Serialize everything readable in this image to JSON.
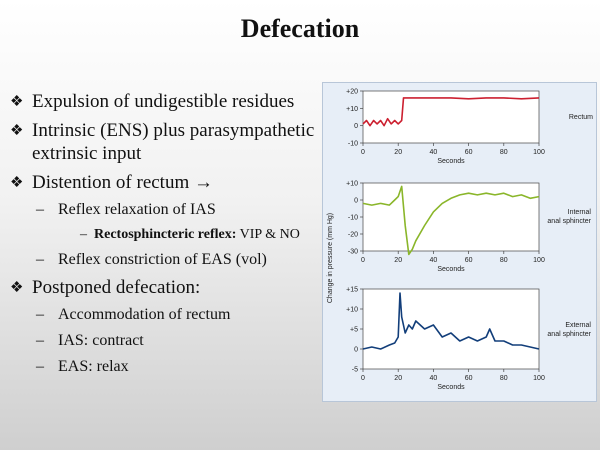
{
  "slide": {
    "title": "Defecation",
    "bullets": {
      "b1": "Expulsion of undigestible residues",
      "b2": "Intrinsic (ENS) plus parasympathetic  extrinsic input",
      "b3": "Distention of rectum →",
      "b3_1": "Reflex relaxation  of IAS",
      "b3_1_1_bold": "Rectosphincteric reflex:",
      "b3_1_1_rest": " VIP & NO",
      "b3_2": "Reflex constriction  of EAS (vol)",
      "b4": "Postponed defecation:",
      "b4_1": "Accommodation  of rectum",
      "b4_2": "IAS: contract",
      "b4_3": "EAS: relax"
    },
    "markers": {
      "level1": "❖",
      "dash": "–"
    }
  },
  "figure": {
    "ylabel": "Change in pressure (mm Hg)",
    "xlabel": "Seconds",
    "x_ticks": [
      "0",
      "20",
      "40",
      "60",
      "80",
      "100"
    ],
    "panels": [
      {
        "label": "Rectum",
        "y_ticks": [
          "+20",
          "+10",
          "0",
          "-10"
        ]
      },
      {
        "label_line1": "Internal",
        "label_line2": "anal sphincter",
        "y_ticks": [
          "+10",
          "0",
          "-10",
          "-20",
          "-30"
        ]
      },
      {
        "label_line1": "External",
        "label_line2": "anal sphincter",
        "y_ticks": [
          "+15",
          "+10",
          "+5",
          "0",
          "-5"
        ]
      }
    ]
  },
  "chart_data": [
    {
      "type": "line",
      "title": "Rectum",
      "xlabel": "Seconds",
      "ylabel": "Change in pressure (mm Hg)",
      "xlim": [
        0,
        100
      ],
      "ylim": [
        -10,
        20
      ],
      "color": "#cc2030",
      "x": [
        0,
        2,
        4,
        6,
        8,
        10,
        12,
        14,
        16,
        18,
        20,
        22,
        23,
        25,
        30,
        40,
        50,
        60,
        70,
        80,
        90,
        100
      ],
      "y": [
        1,
        3,
        0,
        3,
        1,
        3,
        0,
        4,
        1,
        3,
        1,
        3,
        16,
        16,
        16,
        16,
        16,
        15.5,
        16,
        16,
        15.5,
        16
      ]
    },
    {
      "type": "line",
      "title": "Internal anal sphincter",
      "xlabel": "Seconds",
      "ylabel": "Change in pressure (mm Hg)",
      "xlim": [
        0,
        100
      ],
      "ylim": [
        -30,
        10
      ],
      "color": "#8ab62a",
      "x": [
        0,
        5,
        10,
        15,
        18,
        20,
        22,
        24,
        26,
        28,
        30,
        35,
        40,
        45,
        50,
        55,
        60,
        65,
        70,
        75,
        80,
        85,
        90,
        95,
        100
      ],
      "y": [
        -2,
        -3,
        -2,
        -3,
        0,
        2,
        8,
        -15,
        -32,
        -29,
        -24,
        -15,
        -7,
        -2,
        1,
        3,
        4,
        3,
        4,
        3,
        4,
        2,
        3,
        1,
        2
      ]
    },
    {
      "type": "line",
      "title": "External anal sphincter",
      "xlabel": "Seconds",
      "ylabel": "Change in pressure (mm Hg)",
      "xlim": [
        0,
        100
      ],
      "ylim": [
        -5,
        15
      ],
      "color": "#123e7a",
      "x": [
        0,
        5,
        10,
        15,
        18,
        20,
        21,
        22,
        24,
        26,
        28,
        30,
        35,
        40,
        45,
        50,
        55,
        60,
        65,
        70,
        72,
        75,
        80,
        85,
        90,
        95,
        100
      ],
      "y": [
        0,
        0.5,
        0,
        1,
        1.5,
        3,
        14,
        8,
        4,
        6,
        5,
        7,
        5,
        6,
        3,
        4,
        2,
        3,
        2,
        3,
        5,
        2,
        2,
        1,
        1,
        0.5,
        0
      ]
    }
  ]
}
